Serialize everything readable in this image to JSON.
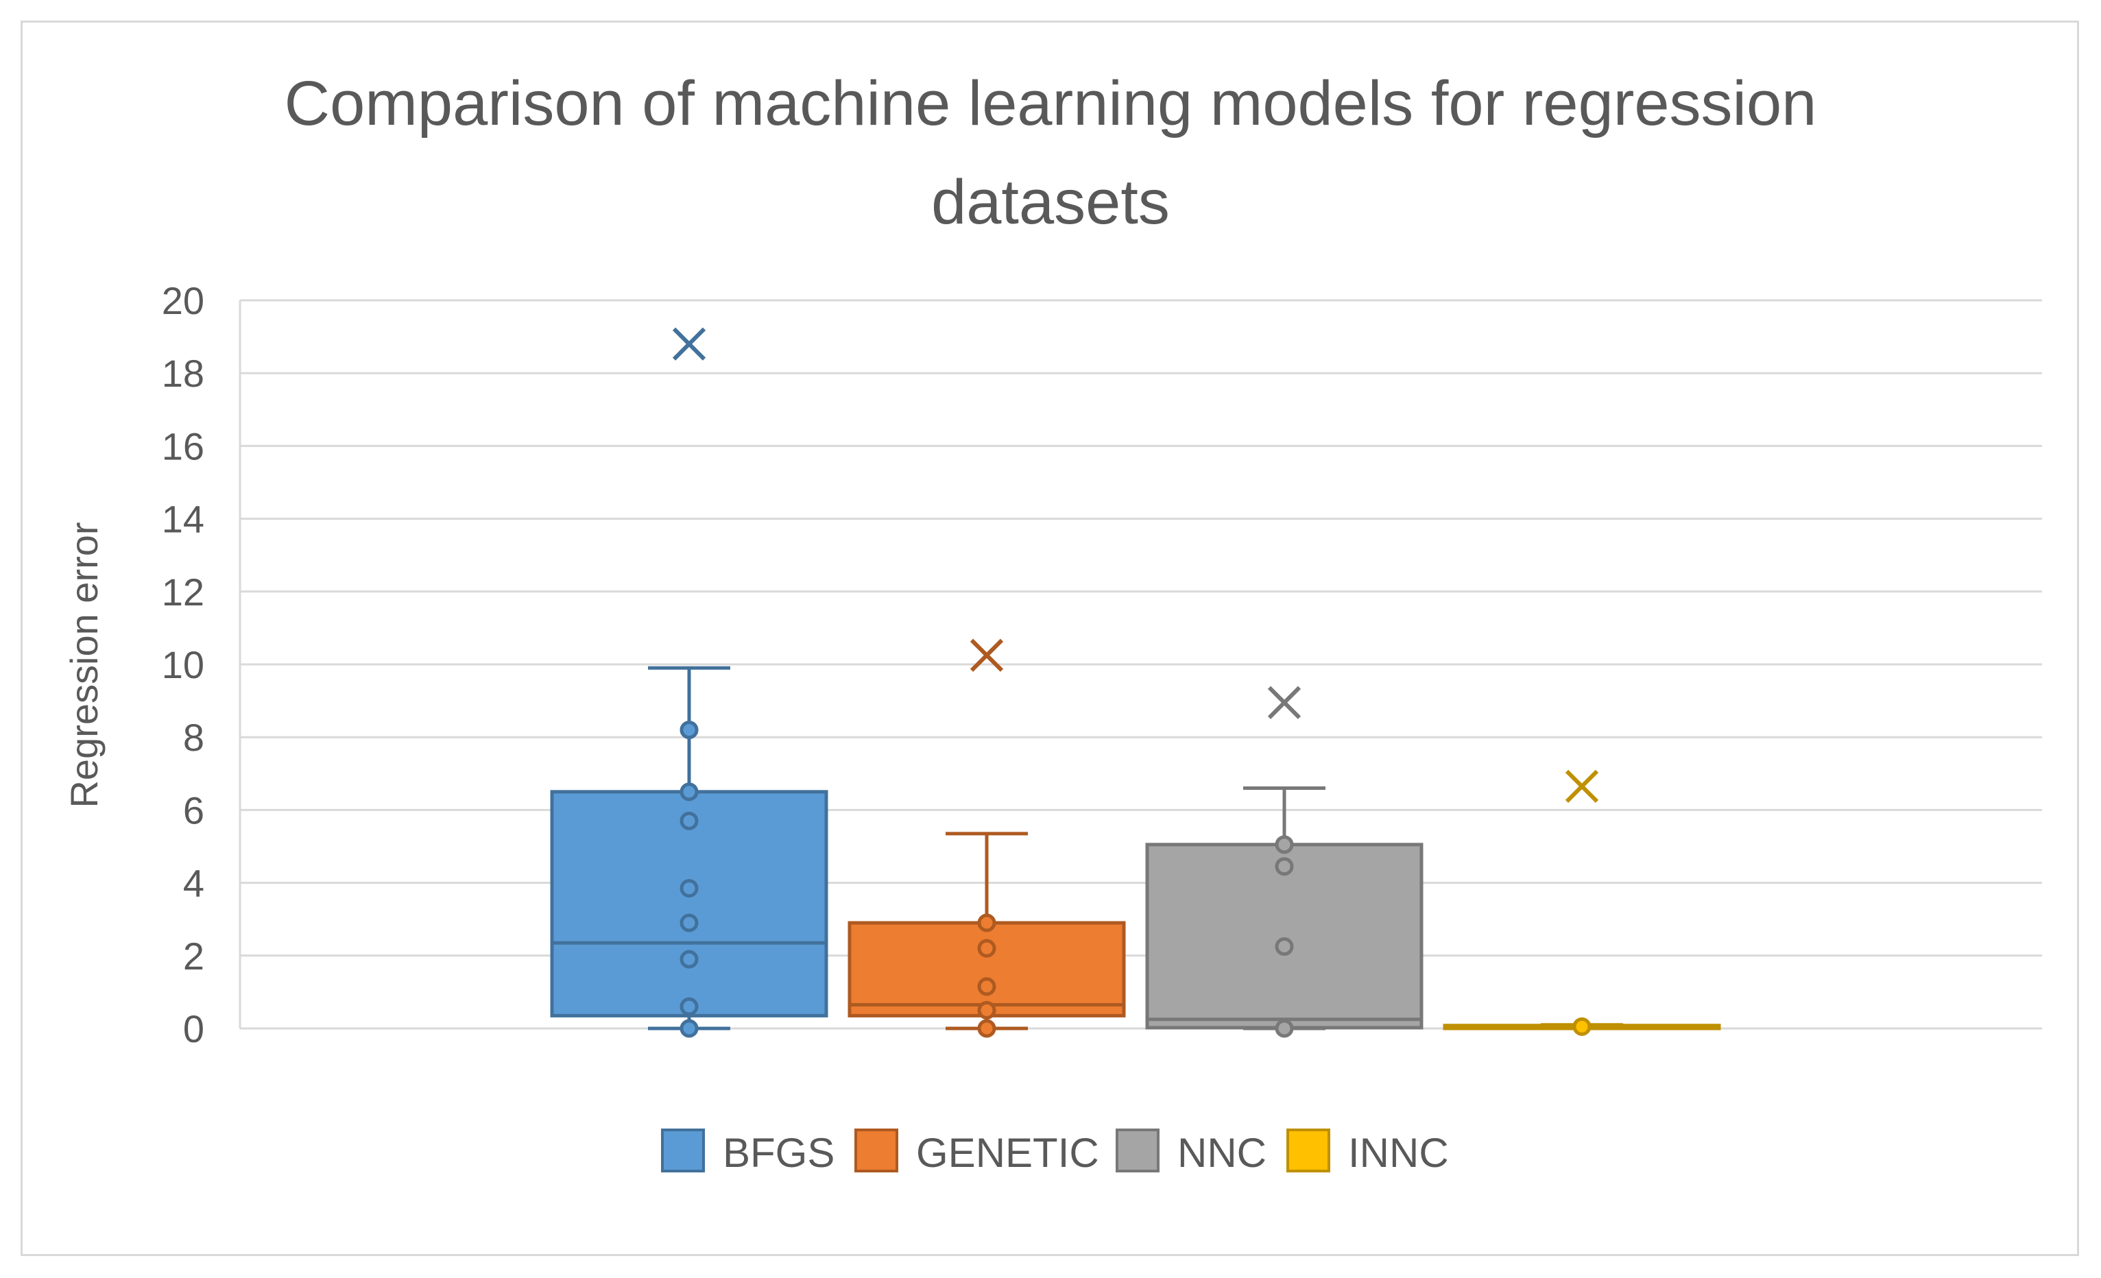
{
  "chart_data": {
    "type": "boxplot",
    "title_lines": [
      "Comparison of machine learning models for regression",
      "datasets"
    ],
    "ylabel": "Regression error",
    "xlabel": "",
    "ylim": [
      0,
      20
    ],
    "yticks": [
      0,
      2,
      4,
      6,
      8,
      10,
      12,
      14,
      16,
      18,
      20
    ],
    "grid": true,
    "legend_position": "bottom",
    "series": [
      {
        "name": "BFGS",
        "color": "#5b9bd5",
        "stroke": "#41719c",
        "min": 0,
        "q1": 0.35,
        "median": 2.35,
        "q3": 6.5,
        "max": 9.9,
        "mean": 18.8,
        "points": [
          0,
          0.6,
          1.9,
          2.9,
          3.85,
          5.7,
          6.5,
          8.2
        ]
      },
      {
        "name": "GENETIC",
        "color": "#ed7d31",
        "stroke": "#ae5a21",
        "min": 0,
        "q1": 0.35,
        "median": 0.65,
        "q3": 2.9,
        "max": 5.35,
        "mean": 10.25,
        "points": [
          0,
          0.5,
          1.15,
          2.2,
          2.9
        ]
      },
      {
        "name": "NNC",
        "color": "#a5a5a5",
        "stroke": "#787878",
        "min": 0,
        "q1": 0.02,
        "median": 0.25,
        "q3": 5.05,
        "max": 6.6,
        "mean": 8.95,
        "points": [
          0,
          2.25,
          4.45,
          5.05
        ]
      },
      {
        "name": "INNC",
        "color": "#ffc000",
        "stroke": "#bf9000",
        "min": 0,
        "q1": 0,
        "median": 0.05,
        "q3": 0.08,
        "max": 0.1,
        "mean": 6.65,
        "points": [
          0.05
        ]
      }
    ]
  }
}
